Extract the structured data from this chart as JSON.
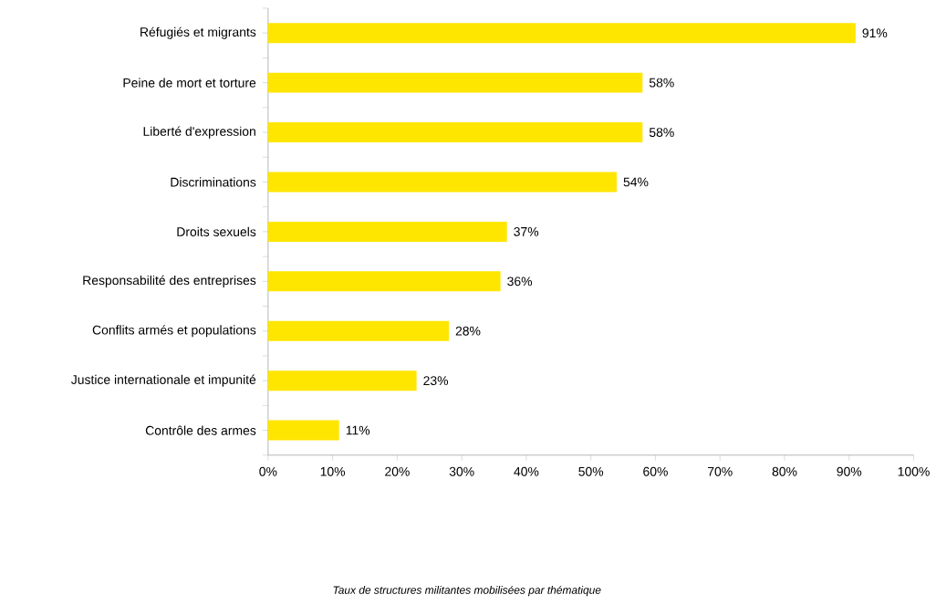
{
  "chart_data": {
    "type": "bar",
    "orientation": "horizontal",
    "categories": [
      "Réfugiés et migrants",
      "Peine de mort et torture",
      "Liberté d'expression",
      "Discriminations",
      "Droits sexuels",
      "Responsabilité des entreprises",
      "Conflits armés et populations",
      "Justice internationale et impunité",
      "Contrôle des armes"
    ],
    "values": [
      91,
      58,
      58,
      54,
      37,
      36,
      28,
      23,
      11
    ],
    "value_labels": [
      "91%",
      "58%",
      "58%",
      "54%",
      "37%",
      "36%",
      "28%",
      "23%",
      "11%"
    ],
    "color": "#ffe600",
    "xlim": [
      0,
      100
    ],
    "xticks": [
      {
        "value": 0,
        "label": "0%"
      },
      {
        "value": 10,
        "label": "10%"
      },
      {
        "value": 20,
        "label": "20%"
      },
      {
        "value": 30,
        "label": "30%"
      },
      {
        "value": 40,
        "label": "40%"
      },
      {
        "value": 50,
        "label": "50%"
      },
      {
        "value": 60,
        "label": "60%"
      },
      {
        "value": 70,
        "label": "70%"
      },
      {
        "value": 80,
        "label": "80%"
      },
      {
        "value": 90,
        "label": "90%"
      },
      {
        "value": 100,
        "label": "100%"
      }
    ],
    "grid": false,
    "annotations": [
      "*Taux de structures militantes mobilisées par thématique*"
    ]
  }
}
